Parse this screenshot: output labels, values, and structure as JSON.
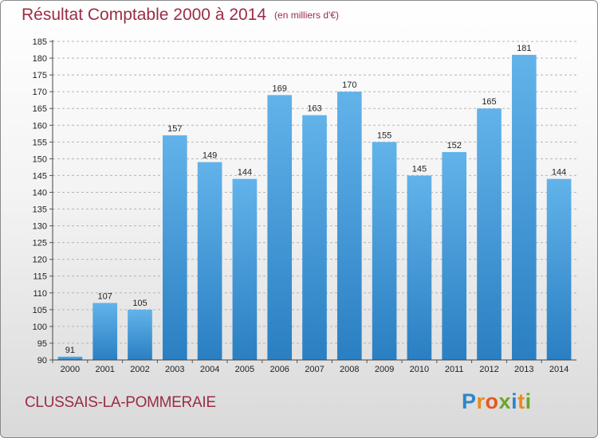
{
  "header": {
    "title": "Résultat Comptable 2000 à 2014",
    "unit": "(en milliers d'€)"
  },
  "footer": {
    "city": "CLUSSAIS-LA-POMMERAIE",
    "logo": {
      "letters": [
        {
          "ch": "P",
          "color": "#2e86c8"
        },
        {
          "ch": "r",
          "color": "#e98a1c"
        },
        {
          "ch": "o",
          "color": "#e45a1c"
        },
        {
          "ch": "x",
          "color": "#6aa629"
        },
        {
          "ch": "i",
          "color": "#2e86c8"
        },
        {
          "ch": "t",
          "color": "#e98a1c"
        },
        {
          "ch": "i",
          "color": "#6aa629"
        }
      ]
    }
  },
  "colors": {
    "title": "#9b2c46",
    "bar_top": "#62b3ea",
    "bar_bottom": "#2a7fc2",
    "grid": "#b5b5b5"
  },
  "chart_data": {
    "type": "bar",
    "title": "Résultat Comptable 2000 à 2014",
    "subtitle": "(en milliers d'€)",
    "xlabel": "",
    "ylabel": "",
    "categories": [
      "2000",
      "2001",
      "2002",
      "2003",
      "2004",
      "2005",
      "2006",
      "2007",
      "2008",
      "2009",
      "2010",
      "2011",
      "2012",
      "2013",
      "2014"
    ],
    "values": [
      91,
      107,
      105,
      157,
      149,
      144,
      169,
      163,
      170,
      155,
      145,
      152,
      165,
      181,
      144
    ],
    "ylim": [
      90,
      185
    ],
    "yticks": [
      90,
      95,
      100,
      105,
      110,
      115,
      120,
      125,
      130,
      135,
      140,
      145,
      150,
      155,
      160,
      165,
      170,
      175,
      180,
      185
    ],
    "grid": true,
    "data_labels": true
  }
}
